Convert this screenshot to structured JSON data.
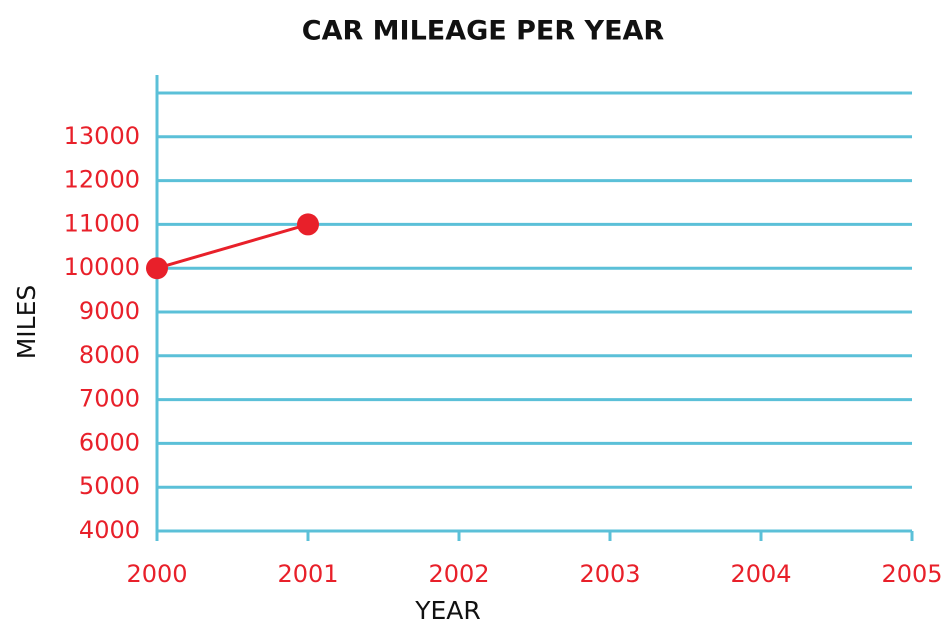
{
  "chart_data": {
    "type": "line",
    "title": "CAR MILEAGE PER YEAR",
    "x_label": "YEAR",
    "y_label": "MILES",
    "x": [
      2000,
      2001
    ],
    "series": [
      {
        "name": "Miles",
        "color": "#e8202a",
        "values": [
          10000,
          11000
        ]
      }
    ],
    "xlim": [
      2000,
      2005
    ],
    "xticks": [
      2000,
      2001,
      2002,
      2003,
      2004,
      2005
    ],
    "ylim": [
      4000,
      14000
    ],
    "yticks": [
      4000,
      5000,
      6000,
      7000,
      8000,
      9000,
      10000,
      11000,
      12000,
      13000
    ],
    "grid": true,
    "grid_color": "#5bc0d8",
    "tick_label_color": "#e8202a"
  }
}
